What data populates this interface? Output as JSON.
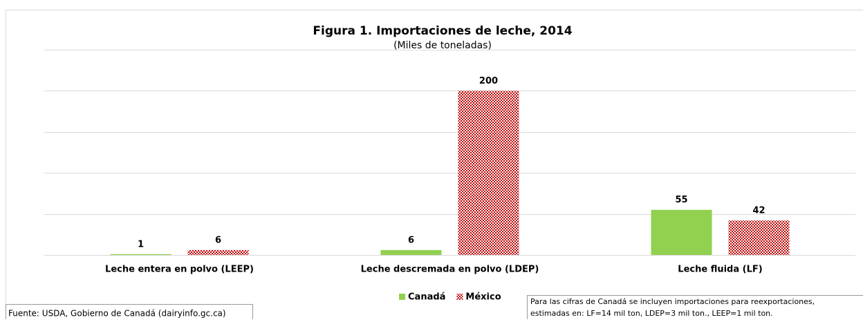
{
  "chart_data": {
    "type": "bar",
    "title": "Figura 1. Importaciones de leche, 2014",
    "subtitle": "(Miles de toneladas)",
    "categories": [
      "Leche entera en polvo (LEEP)",
      "Leche descremada en polvo (LDEP)",
      "Leche fluida (LF)"
    ],
    "series": [
      {
        "name": "Canadá",
        "color": "#92d050",
        "values": [
          1,
          6,
          55
        ]
      },
      {
        "name": "México",
        "color": "#c00000",
        "pattern": "checker",
        "values": [
          6,
          200,
          42
        ]
      }
    ],
    "ylim": [
      0,
      250
    ],
    "yticks": [
      0,
      50,
      100,
      150,
      200,
      250
    ],
    "grid": true,
    "legend": "bottom",
    "source": "Fuente: USDA, Gobierno de Canadá (dairyinfo.gc.ca)",
    "note": [
      "Para las cifras de Canadá se incluyen importaciones para reexportaciones,",
      "estimadas en: LF=14 mil ton, LDEP=3 mil ton., LEEP=1 mil ton."
    ]
  }
}
